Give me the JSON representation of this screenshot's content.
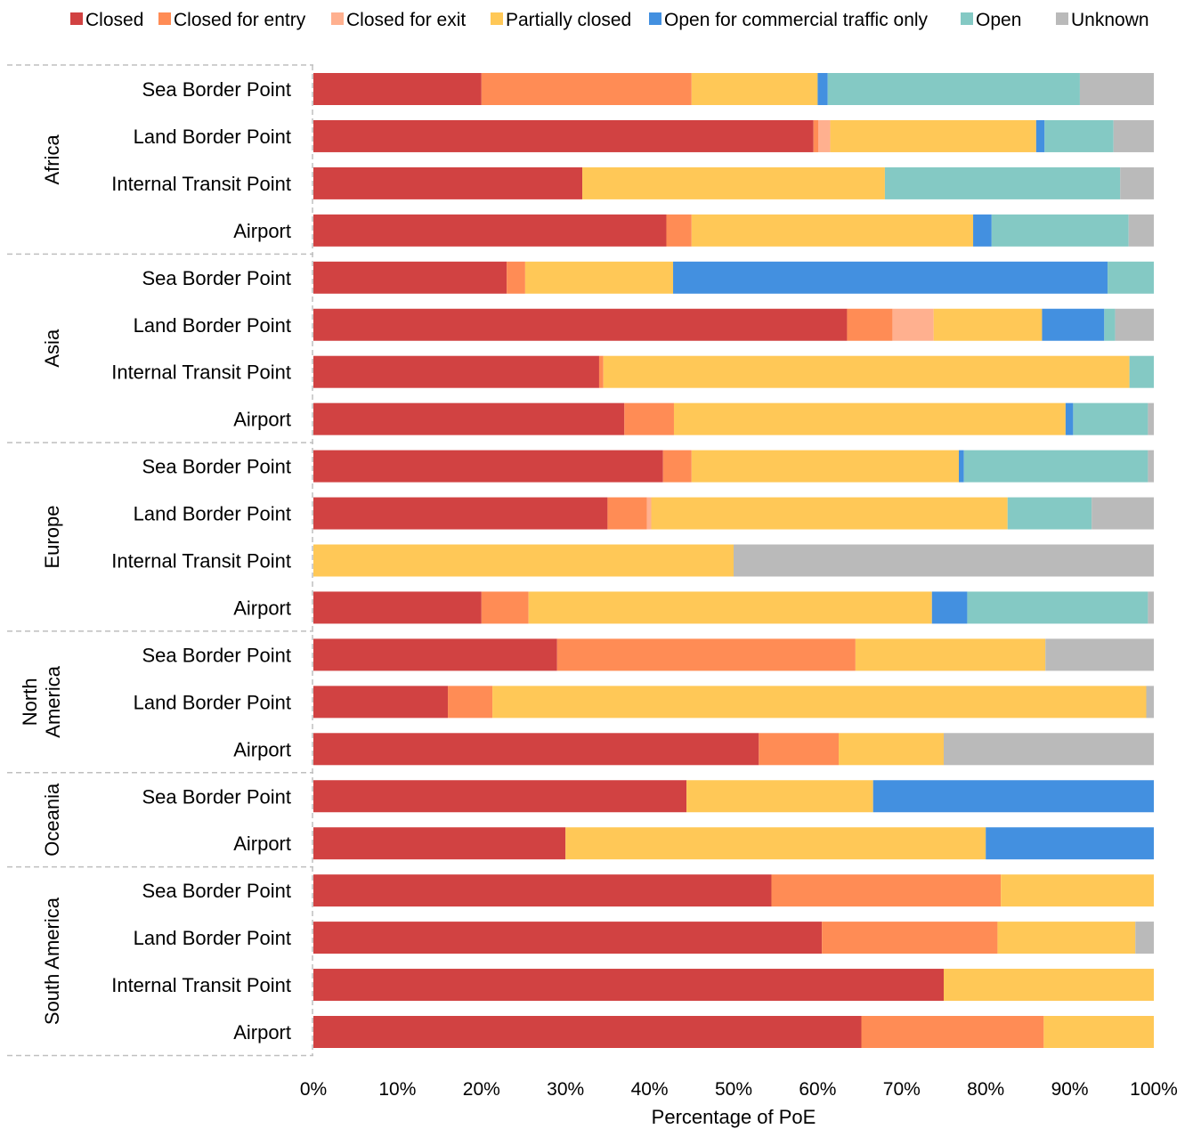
{
  "chart_data": {
    "type": "bar",
    "orientation": "horizontal",
    "stacked": "percent",
    "title": "",
    "xlabel": "Percentage of PoE",
    "ylabel": "",
    "xlim": [
      0,
      100
    ],
    "x_ticks": [
      "0%",
      "10%",
      "20%",
      "30%",
      "40%",
      "50%",
      "60%",
      "70%",
      "80%",
      "90%",
      "100%"
    ],
    "grid": false,
    "legend_position": "top",
    "series": [
      {
        "name": "Closed",
        "color": "#d14242"
      },
      {
        "name": "Closed for entry",
        "color": "#ff8c55"
      },
      {
        "name": "Closed for exit",
        "color": "#ffb08f"
      },
      {
        "name": "Partially closed",
        "color": "#ffc857"
      },
      {
        "name": "Open for commercial traffic only",
        "color": "#4390e0"
      },
      {
        "name": "Open",
        "color": "#84c9c4"
      },
      {
        "name": "Unknown",
        "color": "#bababa"
      }
    ],
    "groups": [
      {
        "name": "Africa",
        "bars": [
          {
            "label": "Sea Border Point",
            "values": [
              20,
              25,
              0,
              15,
              1.2,
              30,
              8.8
            ]
          },
          {
            "label": "Land Border Point",
            "values": [
              59.5,
              0.6,
              1.4,
              24.5,
              1,
              8.2,
              4.8
            ]
          },
          {
            "label": "Internal Transit Point",
            "values": [
              32,
              0,
              0,
              36,
              0,
              28,
              4
            ]
          },
          {
            "label": "Airport",
            "values": [
              42,
              3,
              0,
              33.5,
              2.2,
              16.3,
              3
            ]
          }
        ]
      },
      {
        "name": "Asia",
        "bars": [
          {
            "label": "Sea Border Point",
            "values": [
              23,
              2.2,
              0,
              17.6,
              51.7,
              5.5,
              0
            ]
          },
          {
            "label": "Land Border Point",
            "values": [
              63.5,
              5.4,
              4.9,
              12.9,
              7.4,
              1.3,
              4.6
            ]
          },
          {
            "label": "Internal Transit Point",
            "values": [
              34,
              0.5,
              0,
              62.6,
              0,
              2.9,
              0
            ]
          },
          {
            "label": "Airport",
            "values": [
              37,
              5.9,
              0,
              46.6,
              0.9,
              8.9,
              0.7
            ]
          }
        ]
      },
      {
        "name": "Europe",
        "bars": [
          {
            "label": "Sea Border Point",
            "values": [
              41.6,
              3.4,
              0,
              31.8,
              0.6,
              21.9,
              0.7
            ]
          },
          {
            "label": "Land Border Point",
            "values": [
              35,
              4.7,
              0.5,
              42.4,
              0,
              10,
              7.4
            ]
          },
          {
            "label": "Internal Transit Point",
            "values": [
              0,
              0,
              0,
              50,
              0,
              0,
              50
            ]
          },
          {
            "label": "Airport",
            "values": [
              20,
              5.6,
              0,
              48,
              4.2,
              21.5,
              0.7
            ]
          }
        ]
      },
      {
        "name": "North America",
        "bars": [
          {
            "label": "Sea Border Point",
            "values": [
              29,
              35.5,
              0,
              22.6,
              0,
              0,
              12.9
            ]
          },
          {
            "label": "Land Border Point",
            "values": [
              16,
              5.3,
              0,
              77.8,
              0,
              0,
              0.9
            ]
          },
          {
            "label": "Airport",
            "values": [
              53,
              9.5,
              0,
              12.5,
              0,
              0,
              25
            ]
          }
        ]
      },
      {
        "name": "Oceania",
        "bars": [
          {
            "label": "Sea Border Point",
            "values": [
              44.4,
              0,
              0,
              22.2,
              33.4,
              0,
              0
            ]
          },
          {
            "label": "Airport",
            "values": [
              30,
              0,
              0,
              50,
              20,
              0,
              0
            ]
          }
        ]
      },
      {
        "name": "South America",
        "bars": [
          {
            "label": "Sea Border Point",
            "values": [
              54.5,
              27.3,
              0,
              18.2,
              0,
              0,
              0
            ]
          },
          {
            "label": "Land Border Point",
            "values": [
              60.5,
              20.9,
              0,
              16.4,
              0,
              0,
              2.2
            ]
          },
          {
            "label": "Internal Transit Point",
            "values": [
              75,
              0,
              0,
              25,
              0,
              0,
              0
            ]
          },
          {
            "label": "Airport",
            "values": [
              65.2,
              21.7,
              0,
              13.1,
              0,
              0,
              0
            ]
          }
        ]
      }
    ]
  }
}
